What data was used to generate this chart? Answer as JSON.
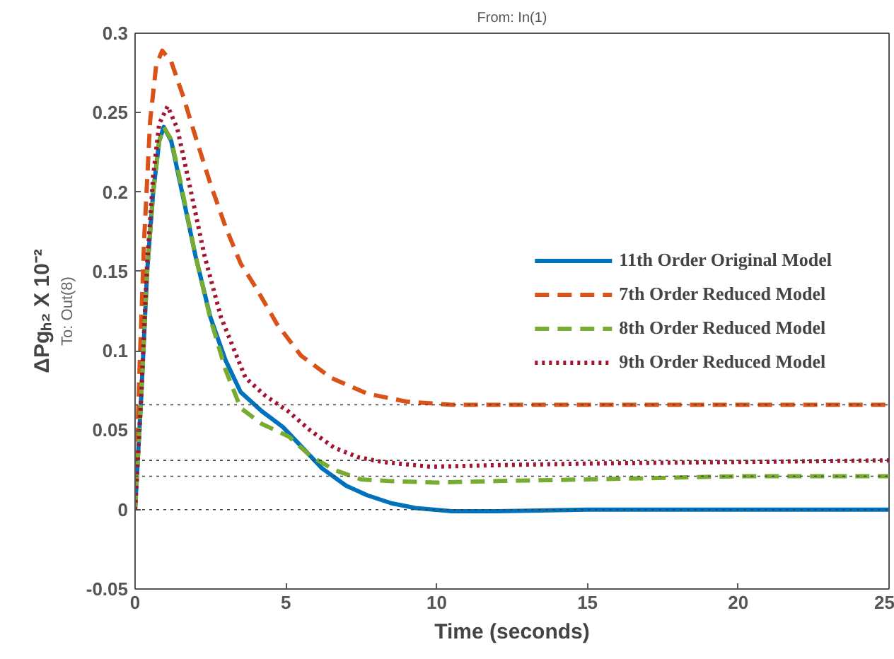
{
  "chart_data": {
    "type": "line",
    "title": "From: In(1)",
    "xlabel": "Time (seconds)",
    "ylabel": "ΔPgₕ₂ X 10⁻²",
    "annotations": [
      "To: Out(8)"
    ],
    "xlim": [
      0,
      25
    ],
    "ylim": [
      -0.05,
      0.3
    ],
    "xticks": [
      0,
      5,
      10,
      15,
      20,
      25
    ],
    "yticks": [
      -0.05,
      0,
      0.05,
      0.1,
      0.15,
      0.2,
      0.25,
      0.3
    ],
    "grid": false,
    "legend": "right",
    "ref_lines": [
      {
        "axis": "y",
        "value": 0.066,
        "line_style": "dotted",
        "color": "#404040"
      },
      {
        "axis": "y",
        "value": 0.031,
        "line_style": "dotted",
        "color": "#404040"
      },
      {
        "axis": "y",
        "value": 0.021,
        "line_style": "dotted",
        "color": "#404040"
      },
      {
        "axis": "y",
        "value": 0,
        "line_style": "dotted",
        "color": "#404040"
      }
    ],
    "series": [
      {
        "name": "11th Order Original Model",
        "color": "#0072bd",
        "line_style": "solid",
        "x": [
          0,
          0.2,
          0.4,
          0.6,
          0.8,
          0.95,
          1.2,
          1.5,
          2,
          2.5,
          3,
          3.5,
          4.2,
          4.9,
          5.5,
          6.2,
          7,
          7.7,
          8.5,
          9.3,
          10.5,
          12,
          15,
          20,
          25
        ],
        "values": [
          0,
          0.07,
          0.15,
          0.2,
          0.232,
          0.241,
          0.232,
          0.205,
          0.16,
          0.121,
          0.094,
          0.074,
          0.062,
          0.052,
          0.04,
          0.026,
          0.015,
          0.009,
          0.004,
          0.001,
          -0.001,
          -0.001,
          0,
          0,
          0
        ]
      },
      {
        "name": "7th Order Reduced Model",
        "color": "#d95319",
        "line_style": "dashed",
        "x": [
          0,
          0.15,
          0.3,
          0.5,
          0.7,
          0.9,
          1.2,
          1.6,
          2,
          2.5,
          3,
          3.5,
          4,
          4.7,
          5.5,
          6.5,
          7.7,
          9,
          10.5,
          12,
          15,
          20,
          25
        ],
        "values": [
          0,
          0.09,
          0.17,
          0.245,
          0.28,
          0.289,
          0.282,
          0.26,
          0.235,
          0.205,
          0.178,
          0.155,
          0.14,
          0.117,
          0.097,
          0.083,
          0.073,
          0.068,
          0.066,
          0.066,
          0.066,
          0.066,
          0.066
        ]
      },
      {
        "name": "8th Order Reduced Model",
        "color": "#77ac30",
        "line_style": "dashed",
        "x": [
          0,
          0.2,
          0.4,
          0.6,
          0.8,
          0.95,
          1.2,
          1.5,
          2,
          2.5,
          3,
          3.5,
          4.2,
          5.1,
          5.8,
          6.6,
          7.5,
          8.4,
          10,
          12,
          15,
          20,
          25
        ],
        "values": [
          0,
          0.07,
          0.15,
          0.2,
          0.232,
          0.241,
          0.233,
          0.207,
          0.16,
          0.12,
          0.088,
          0.064,
          0.054,
          0.046,
          0.034,
          0.025,
          0.019,
          0.018,
          0.017,
          0.018,
          0.019,
          0.021,
          0.021
        ]
      },
      {
        "name": "9th Order Reduced Model",
        "color": "#a2142f",
        "line_style": "dotted",
        "x": [
          0,
          0.2,
          0.4,
          0.6,
          0.8,
          1.08,
          1.4,
          1.8,
          2.3,
          2.85,
          3.66,
          4.3,
          5.07,
          5.8,
          6.6,
          7.4,
          8.2,
          9.8,
          12,
          15,
          20,
          25
        ],
        "values": [
          0,
          0.07,
          0.155,
          0.21,
          0.243,
          0.254,
          0.24,
          0.205,
          0.16,
          0.121,
          0.083,
          0.072,
          0.062,
          0.05,
          0.039,
          0.033,
          0.03,
          0.027,
          0.028,
          0.029,
          0.03,
          0.031
        ]
      }
    ]
  }
}
